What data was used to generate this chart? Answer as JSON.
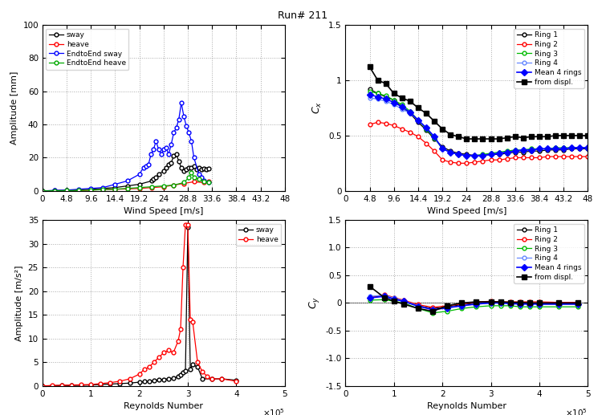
{
  "title": "Run# 211",
  "top_left": {
    "xlabel": "Wind Speed [m/s]",
    "ylabel": "Amplitude [mm]",
    "xlim": [
      0,
      48
    ],
    "ylim": [
      0,
      100
    ],
    "xticks": [
      0,
      4.8,
      9.6,
      14.4,
      19.2,
      24,
      28.8,
      33.6,
      38.4,
      43.2,
      48
    ],
    "yticks": [
      0,
      20,
      40,
      60,
      80,
      100
    ],
    "legend": [
      "sway",
      "heave",
      "EndtoEnd sway",
      "EndtoEnd heave"
    ],
    "series": {
      "sway": {
        "color": "#000000",
        "x": [
          0,
          2.4,
          4.8,
          7.2,
          9.6,
          12.0,
          14.4,
          16.8,
          19.2,
          21.6,
          22.0,
          22.5,
          23.0,
          24.0,
          24.5,
          25.0,
          25.5,
          26.0,
          26.5,
          27.0,
          27.5,
          28.0,
          28.5,
          29.0,
          29.5,
          30.0,
          30.5,
          31.0,
          31.5,
          32.0,
          32.5,
          33.0
        ],
        "y": [
          0,
          0.2,
          0.3,
          0.5,
          1.0,
          1.5,
          2.0,
          3.0,
          4.0,
          6.0,
          7.0,
          8.0,
          10.0,
          12.0,
          14.0,
          16.0,
          17.0,
          21.0,
          22.0,
          18.0,
          14.0,
          12.0,
          13.0,
          14.0,
          14.0,
          15.0,
          13.0,
          14.0,
          13.0,
          13.5,
          13.0,
          13.5
        ]
      },
      "heave": {
        "color": "#ff0000",
        "x": [
          0,
          2.4,
          4.8,
          7.2,
          9.6,
          12.0,
          14.4,
          16.8,
          19.2,
          21.6,
          24.0,
          26.0,
          28.0,
          30.0,
          32.0,
          33.0
        ],
        "y": [
          0,
          0.1,
          0.2,
          0.3,
          0.5,
          0.8,
          1.0,
          1.2,
          1.5,
          2.0,
          2.5,
          3.5,
          4.5,
          5.5,
          5.0,
          5.5
        ]
      },
      "endtoend_sway": {
        "color": "#0000ff",
        "x": [
          0,
          2.4,
          4.8,
          7.2,
          9.6,
          12.0,
          14.4,
          16.8,
          19.2,
          20.0,
          20.5,
          21.0,
          21.5,
          22.0,
          22.5,
          23.0,
          23.5,
          24.0,
          24.5,
          25.0,
          25.5,
          26.0,
          26.5,
          27.0,
          27.5,
          28.0,
          28.5,
          29.0,
          29.5,
          30.0,
          31.0,
          31.5,
          32.0,
          33.0
        ],
        "y": [
          0,
          0.3,
          0.5,
          1.0,
          1.5,
          2.0,
          4.0,
          6.0,
          10.0,
          14.0,
          15.0,
          16.0,
          22.0,
          25.0,
          30.0,
          25.0,
          22.0,
          25.0,
          26.0,
          22.0,
          28.0,
          35.0,
          38.0,
          43.0,
          53.0,
          45.0,
          39.0,
          35.0,
          30.0,
          20.0,
          10.0,
          8.0,
          6.0,
          5.0
        ]
      },
      "endtoend_heave": {
        "color": "#00aa00",
        "x": [
          0,
          2.4,
          4.8,
          7.2,
          9.6,
          12.0,
          14.4,
          16.8,
          19.2,
          21.6,
          24.0,
          26.0,
          28.0,
          29.0,
          29.5,
          30.0,
          31.0,
          32.0,
          33.0
        ],
        "y": [
          0,
          0.1,
          0.2,
          0.3,
          0.5,
          0.8,
          1.0,
          1.5,
          2.0,
          2.5,
          3.0,
          3.5,
          5.0,
          8.0,
          11.0,
          8.0,
          7.0,
          5.5,
          5.0
        ]
      }
    }
  },
  "top_right": {
    "xlabel": "Wind Speed [m/s]",
    "ylabel": "C_x",
    "xlim": [
      0,
      48
    ],
    "ylim": [
      0,
      1.5
    ],
    "xticks": [
      0,
      4.8,
      9.6,
      14.4,
      19.2,
      24,
      28.8,
      33.6,
      38.4,
      43.2,
      48
    ],
    "yticks": [
      0,
      0.5,
      1.0,
      1.5
    ],
    "series": {
      "ring1": {
        "color": "#000000",
        "x": [
          4.8,
          6.4,
          8.0,
          9.6,
          11.2,
          12.8,
          14.4,
          16.0,
          17.6,
          19.2,
          20.8,
          22.4,
          24.0,
          25.6,
          27.2,
          28.8,
          30.4,
          32.0,
          33.6,
          35.2,
          36.8,
          38.4,
          40.0,
          41.6,
          43.2,
          44.8,
          46.4,
          48.0
        ],
        "y": [
          0.92,
          0.88,
          0.85,
          0.82,
          0.76,
          0.7,
          0.62,
          0.55,
          0.47,
          0.4,
          0.36,
          0.34,
          0.33,
          0.32,
          0.32,
          0.33,
          0.33,
          0.34,
          0.35,
          0.35,
          0.36,
          0.36,
          0.37,
          0.37,
          0.37,
          0.38,
          0.38,
          0.38
        ]
      },
      "ring2": {
        "color": "#ff0000",
        "x": [
          4.8,
          6.4,
          8.0,
          9.6,
          11.2,
          12.8,
          14.4,
          16.0,
          17.6,
          19.2,
          20.8,
          22.4,
          24.0,
          25.6,
          27.2,
          28.8,
          30.4,
          32.0,
          33.6,
          35.2,
          36.8,
          38.4,
          40.0,
          41.6,
          43.2,
          44.8,
          46.4,
          48.0
        ],
        "y": [
          0.6,
          0.62,
          0.61,
          0.59,
          0.56,
          0.53,
          0.49,
          0.43,
          0.36,
          0.28,
          0.26,
          0.25,
          0.25,
          0.26,
          0.27,
          0.28,
          0.28,
          0.29,
          0.3,
          0.3,
          0.3,
          0.3,
          0.31,
          0.31,
          0.31,
          0.31,
          0.31,
          0.31
        ]
      },
      "ring3": {
        "color": "#00bb00",
        "x": [
          4.8,
          6.4,
          8.0,
          9.6,
          11.2,
          12.8,
          14.4,
          16.0,
          17.6,
          19.2,
          20.8,
          22.4,
          24.0,
          25.6,
          27.2,
          28.8,
          30.4,
          32.0,
          33.6,
          35.2,
          36.8,
          38.4,
          40.0,
          41.6,
          43.2,
          44.8,
          46.4,
          48.0
        ],
        "y": [
          0.9,
          0.88,
          0.86,
          0.82,
          0.78,
          0.72,
          0.64,
          0.56,
          0.48,
          0.38,
          0.35,
          0.33,
          0.32,
          0.32,
          0.33,
          0.34,
          0.35,
          0.36,
          0.37,
          0.37,
          0.38,
          0.38,
          0.38,
          0.39,
          0.39,
          0.39,
          0.39,
          0.39
        ]
      },
      "ring4": {
        "color": "#6688ff",
        "x": [
          4.8,
          6.4,
          8.0,
          9.6,
          11.2,
          12.8,
          14.4,
          16.0,
          17.6,
          19.2,
          20.8,
          22.4,
          24.0,
          25.6,
          27.2,
          28.8,
          30.4,
          32.0,
          33.6,
          35.2,
          36.8,
          38.4,
          40.0,
          41.6,
          43.2,
          44.8,
          46.4,
          48.0
        ],
        "y": [
          0.84,
          0.83,
          0.81,
          0.78,
          0.74,
          0.7,
          0.64,
          0.57,
          0.49,
          0.38,
          0.35,
          0.33,
          0.32,
          0.32,
          0.32,
          0.33,
          0.34,
          0.35,
          0.36,
          0.37,
          0.37,
          0.38,
          0.38,
          0.38,
          0.38,
          0.39,
          0.39,
          0.39
        ]
      },
      "mean4rings": {
        "color": "#0000ff",
        "x": [
          4.8,
          6.4,
          8.0,
          9.6,
          11.2,
          12.8,
          14.4,
          16.0,
          17.6,
          19.2,
          20.8,
          22.4,
          24.0,
          25.6,
          27.2,
          28.8,
          30.4,
          32.0,
          33.6,
          35.2,
          36.8,
          38.4,
          40.0,
          41.6,
          43.2,
          44.8,
          46.4,
          48.0
        ],
        "y": [
          0.87,
          0.85,
          0.83,
          0.8,
          0.76,
          0.71,
          0.64,
          0.57,
          0.49,
          0.38,
          0.35,
          0.33,
          0.32,
          0.32,
          0.32,
          0.33,
          0.34,
          0.35,
          0.36,
          0.37,
          0.37,
          0.38,
          0.38,
          0.38,
          0.38,
          0.39,
          0.39,
          0.39
        ]
      },
      "from_displ": {
        "color": "#000000",
        "x": [
          4.8,
          6.4,
          8.0,
          9.6,
          11.2,
          12.8,
          14.4,
          16.0,
          17.6,
          19.2,
          20.8,
          22.4,
          24.0,
          25.6,
          27.2,
          28.8,
          30.4,
          32.0,
          33.6,
          35.2,
          36.8,
          38.4,
          40.0,
          41.6,
          43.2,
          44.8,
          46.4,
          48.0
        ],
        "y": [
          1.12,
          1.0,
          0.97,
          0.88,
          0.84,
          0.81,
          0.75,
          0.7,
          0.63,
          0.56,
          0.51,
          0.49,
          0.47,
          0.47,
          0.47,
          0.47,
          0.47,
          0.48,
          0.49,
          0.48,
          0.49,
          0.49,
          0.49,
          0.5,
          0.5,
          0.5,
          0.5,
          0.5
        ]
      }
    }
  },
  "bottom_left": {
    "xlabel": "Reynolds Number",
    "ylabel": "Amplitude [m/s²]",
    "xlim": [
      0,
      500000.0
    ],
    "ylim": [
      0,
      35
    ],
    "xticks": [
      0,
      100000.0,
      200000.0,
      300000.0,
      400000.0,
      500000.0
    ],
    "xticklabels": [
      "0",
      "1",
      "2",
      "3",
      "4",
      "5"
    ],
    "yticks": [
      0,
      5,
      10,
      15,
      20,
      25,
      30,
      35
    ],
    "re_scale_label": "x 10^5",
    "series": {
      "sway": {
        "color": "#000000",
        "x": [
          0,
          20000,
          40000,
          60000,
          80000,
          100000,
          120000,
          140000,
          160000,
          180000,
          200000,
          210000,
          220000,
          230000,
          240000,
          250000,
          260000,
          270000,
          280000,
          285000,
          290000,
          295000,
          300000,
          305000,
          310000,
          320000,
          330000,
          350000,
          370000,
          400000
        ],
        "y": [
          0,
          0.05,
          0.1,
          0.1,
          0.15,
          0.2,
          0.3,
          0.4,
          0.5,
          0.6,
          0.8,
          0.9,
          1.0,
          1.1,
          1.3,
          1.4,
          1.5,
          1.6,
          2.0,
          2.3,
          2.8,
          3.2,
          33.5,
          3.5,
          4.5,
          4.0,
          1.5,
          1.5,
          1.5,
          1.2
        ]
      },
      "heave": {
        "color": "#ff0000",
        "x": [
          0,
          20000,
          40000,
          60000,
          80000,
          100000,
          120000,
          140000,
          160000,
          180000,
          200000,
          210000,
          220000,
          230000,
          240000,
          250000,
          260000,
          270000,
          280000,
          285000,
          290000,
          295000,
          300000,
          305000,
          310000,
          320000,
          330000,
          340000,
          350000,
          370000,
          400000
        ],
        "y": [
          0,
          0.1,
          0.15,
          0.2,
          0.25,
          0.3,
          0.5,
          0.7,
          1.0,
          1.5,
          2.5,
          3.5,
          4.0,
          5.0,
          6.0,
          7.0,
          7.5,
          7.0,
          9.5,
          12.0,
          25.0,
          34.0,
          34.0,
          14.0,
          13.5,
          5.0,
          3.0,
          2.0,
          1.5,
          1.5,
          1.0
        ]
      }
    }
  },
  "bottom_right": {
    "xlabel": "Reynolds Number",
    "ylabel": "C_y",
    "xlim": [
      0,
      500000.0
    ],
    "ylim": [
      -1.5,
      1.5
    ],
    "xticks": [
      0,
      100000.0,
      200000.0,
      300000.0,
      400000.0,
      500000.0
    ],
    "xticklabels": [
      "0",
      "1",
      "2",
      "3",
      "4",
      "5"
    ],
    "yticks": [
      -1.5,
      -1.0,
      -0.5,
      0,
      0.5,
      1.0,
      1.5
    ],
    "series": {
      "ring1": {
        "color": "#000000",
        "x": [
          50000,
          80000,
          100000,
          120000,
          150000,
          180000,
          210000,
          240000,
          270000,
          300000,
          320000,
          340000,
          360000,
          380000,
          400000,
          440000,
          480000
        ],
        "y": [
          0.1,
          0.13,
          0.08,
          0.03,
          -0.05,
          -0.1,
          -0.07,
          -0.03,
          0.0,
          0.02,
          0.01,
          0.0,
          0.0,
          0.0,
          -0.02,
          -0.02,
          -0.02
        ]
      },
      "ring2": {
        "color": "#ff0000",
        "x": [
          50000,
          80000,
          100000,
          120000,
          150000,
          180000,
          210000,
          240000,
          270000,
          300000,
          320000,
          340000,
          360000,
          380000,
          400000,
          440000,
          480000
        ],
        "y": [
          0.1,
          0.15,
          0.1,
          0.05,
          -0.03,
          -0.08,
          -0.05,
          -0.02,
          0.02,
          0.03,
          0.02,
          0.02,
          0.02,
          0.02,
          0.02,
          0.01,
          0.01
        ]
      },
      "ring3": {
        "color": "#00bb00",
        "x": [
          50000,
          80000,
          100000,
          120000,
          150000,
          180000,
          210000,
          240000,
          270000,
          300000,
          320000,
          340000,
          360000,
          380000,
          400000,
          440000,
          480000
        ],
        "y": [
          0.05,
          0.06,
          0.03,
          0.0,
          -0.1,
          -0.18,
          -0.15,
          -0.1,
          -0.07,
          -0.05,
          -0.05,
          -0.05,
          -0.07,
          -0.07,
          -0.07,
          -0.07,
          -0.07
        ]
      },
      "ring4": {
        "color": "#6688ff",
        "x": [
          50000,
          80000,
          100000,
          120000,
          150000,
          180000,
          210000,
          240000,
          270000,
          300000,
          320000,
          340000,
          360000,
          380000,
          400000,
          440000,
          480000
        ],
        "y": [
          0.12,
          0.14,
          0.09,
          0.04,
          -0.05,
          -0.12,
          -0.08,
          -0.05,
          -0.02,
          0.0,
          0.0,
          -0.01,
          -0.01,
          -0.01,
          -0.02,
          -0.02,
          -0.02
        ]
      },
      "mean4rings": {
        "color": "#0000ff",
        "x": [
          50000,
          80000,
          100000,
          120000,
          150000,
          180000,
          210000,
          240000,
          270000,
          300000,
          320000,
          340000,
          360000,
          380000,
          400000,
          440000,
          480000
        ],
        "y": [
          0.09,
          0.12,
          0.07,
          0.03,
          -0.06,
          -0.12,
          -0.09,
          -0.05,
          -0.02,
          0.0,
          0.0,
          -0.01,
          -0.02,
          -0.02,
          -0.02,
          -0.02,
          -0.02
        ]
      },
      "from_displ": {
        "color": "#000000",
        "x": [
          50000,
          80000,
          100000,
          120000,
          150000,
          180000,
          210000,
          240000,
          270000,
          300000,
          320000,
          340000,
          360000,
          380000,
          400000,
          440000,
          480000
        ],
        "y": [
          0.3,
          0.1,
          0.03,
          -0.02,
          -0.1,
          -0.15,
          -0.05,
          0.0,
          0.02,
          0.02,
          0.02,
          0.01,
          0.01,
          0.0,
          0.0,
          0.0,
          0.0
        ]
      }
    }
  }
}
